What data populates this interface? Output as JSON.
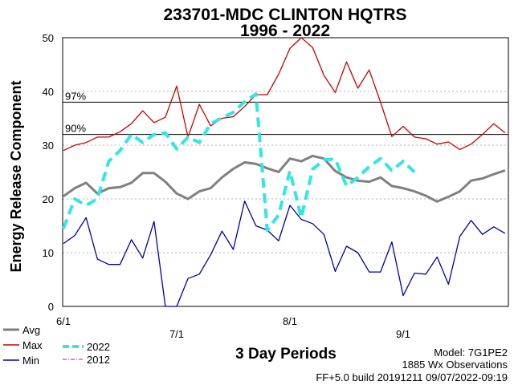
{
  "chart_data": {
    "type": "line",
    "title": "233701-MDC CLINTON HQTRS",
    "subtitle": "1996 - 2022",
    "ylabel": "Energy Release Component",
    "xlabel": "3 Day Periods",
    "ylim": [
      0,
      50
    ],
    "yticks": [
      0,
      10,
      20,
      30,
      40,
      50
    ],
    "xticks": [
      {
        "label": "6/1",
        "index": 0
      },
      {
        "label": "7/1",
        "index": 10
      },
      {
        "label": "8/1",
        "index": 20
      },
      {
        "label": "9/1",
        "index": 30
      }
    ],
    "percentiles": [
      {
        "label": "97%",
        "value": 38
      },
      {
        "label": "90%",
        "value": 32
      }
    ],
    "grid": "dashed-horizontal",
    "series": [
      {
        "name": "Avg",
        "color": "#808080",
        "style": "solid",
        "values": [
          20.5,
          22,
          23,
          21,
          22,
          22.2,
          23,
          24.8,
          24.8,
          23.2,
          21,
          20,
          21.4,
          22,
          24,
          25.6,
          26.8,
          26.5,
          25.7,
          25,
          27.5,
          27,
          28,
          27.5,
          25.2,
          24,
          23.4,
          23.2,
          24,
          22.4,
          22,
          21.4,
          20.6,
          19.5,
          20.4,
          21.4,
          23.4,
          23.8,
          24.6,
          25.3
        ]
      },
      {
        "name": "Max",
        "color": "#cc0000",
        "style": "solid",
        "values": [
          29,
          30,
          30.5,
          31.5,
          31.5,
          32.5,
          34,
          36.4,
          34.2,
          35.2,
          41,
          31.5,
          37.6,
          33.6,
          35,
          35.3,
          37.2,
          39.4,
          39.4,
          43.2,
          48,
          50,
          48.2,
          43,
          39.8,
          45.5,
          40.6,
          44,
          38,
          31.6,
          33.5,
          31.5,
          31.2,
          30.2,
          30.6,
          29.2,
          30.2,
          32,
          34,
          32.3
        ]
      },
      {
        "name": "Min",
        "color": "#0000aa",
        "style": "solid",
        "values": [
          11.7,
          13.2,
          16.5,
          8.8,
          7.8,
          7.8,
          12.4,
          9,
          15.8,
          0,
          0,
          5.2,
          6,
          9.6,
          14,
          10.6,
          19.6,
          15,
          14.2,
          12.2,
          18.8,
          16.2,
          15.4,
          13.4,
          6.5,
          11.2,
          10,
          6.4,
          6.4,
          12,
          2,
          6.2,
          6,
          9.2,
          4.1,
          13,
          16,
          13.4,
          14.8,
          13.6
        ]
      },
      {
        "name": "2022",
        "color": "#33e5e5",
        "style": "dashed",
        "values": [
          14.5,
          20,
          18.8,
          20,
          27,
          29,
          32,
          30.5,
          32,
          32.3,
          29.3,
          31.5,
          30.5,
          34,
          35.1,
          36.1,
          38.1,
          39.5,
          14.2,
          17,
          25.2,
          16.5,
          25.5,
          27.3,
          27.4,
          22.4,
          24,
          26,
          27.5,
          25.3,
          27,
          25
        ]
      },
      {
        "name": "2012",
        "color": "#cc00cc",
        "style": "dash-dot",
        "values": []
      }
    ],
    "legend_placement": "bottom-left"
  },
  "footer": {
    "model": "Model: 7G1PE2",
    "observations": "1885 Wx Observations",
    "build": "FF+5.0 build 20191211 09/07/2022-09:19"
  }
}
